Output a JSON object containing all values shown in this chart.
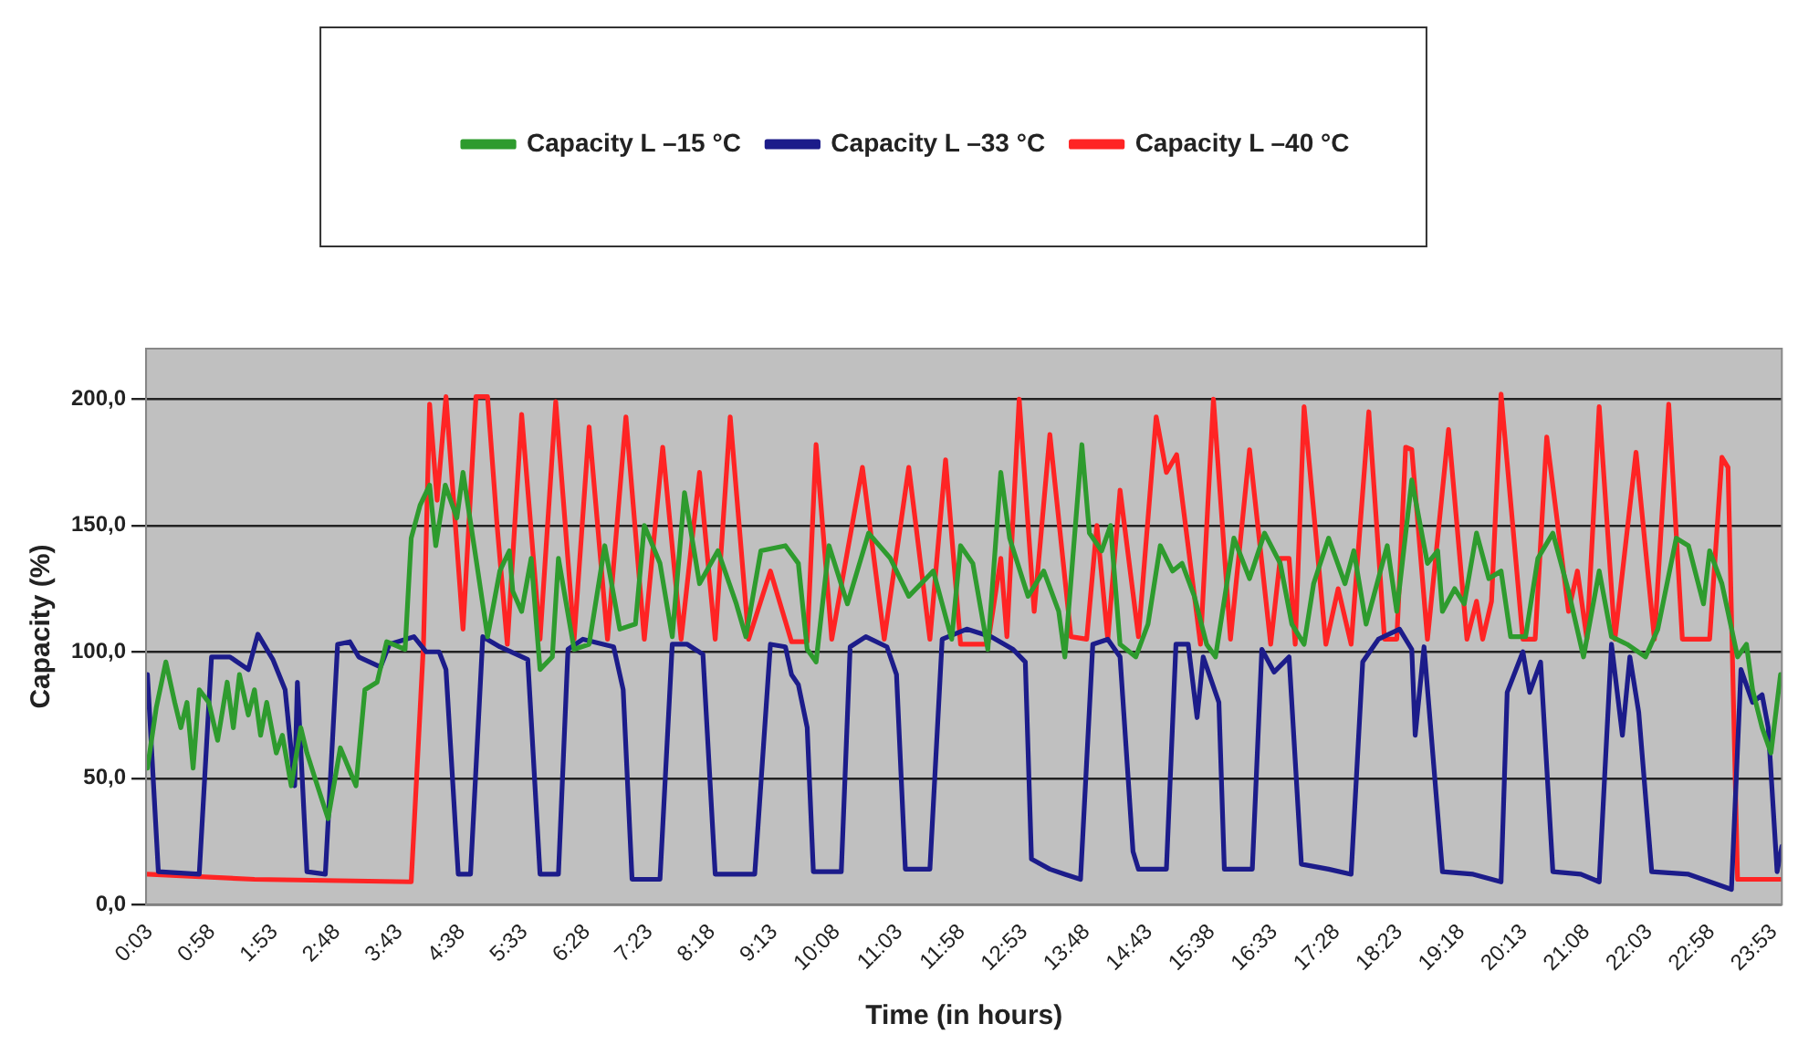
{
  "chart_data": {
    "type": "line",
    "xlabel": "Time (in hours)",
    "ylabel": "Capacity (%)",
    "legend": "top",
    "grid": "y",
    "xlim": [
      0,
      24
    ],
    "xticks": [
      {
        "value": 0.05,
        "label": "0:03"
      },
      {
        "value": 0.9667,
        "label": "0:58"
      },
      {
        "value": 1.8833,
        "label": "1:53"
      },
      {
        "value": 2.8,
        "label": "2:48"
      },
      {
        "value": 3.7167,
        "label": "3:43"
      },
      {
        "value": 4.6333,
        "label": "4:38"
      },
      {
        "value": 5.55,
        "label": "5:33"
      },
      {
        "value": 6.4667,
        "label": "6:28"
      },
      {
        "value": 7.3833,
        "label": "7:23"
      },
      {
        "value": 8.3,
        "label": "8:18"
      },
      {
        "value": 9.2167,
        "label": "9:13"
      },
      {
        "value": 10.1333,
        "label": "10:08"
      },
      {
        "value": 11.05,
        "label": "11:03"
      },
      {
        "value": 11.9667,
        "label": "11:58"
      },
      {
        "value": 12.8833,
        "label": "12:53"
      },
      {
        "value": 13.8,
        "label": "13:48"
      },
      {
        "value": 14.7167,
        "label": "14:43"
      },
      {
        "value": 15.6333,
        "label": "15:38"
      },
      {
        "value": 16.55,
        "label": "16:33"
      },
      {
        "value": 17.4667,
        "label": "17:28"
      },
      {
        "value": 18.3833,
        "label": "18:23"
      },
      {
        "value": 19.3,
        "label": "19:18"
      },
      {
        "value": 20.2167,
        "label": "20:13"
      },
      {
        "value": 21.1333,
        "label": "21:08"
      },
      {
        "value": 22.05,
        "label": "22:03"
      },
      {
        "value": 22.9667,
        "label": "22:58"
      },
      {
        "value": 23.8833,
        "label": "23:53"
      }
    ],
    "ylim": [
      0,
      220
    ],
    "yticks": [
      {
        "value": 0,
        "label": "0,0"
      },
      {
        "value": 50,
        "label": "50,0"
      },
      {
        "value": 100,
        "label": "100,0"
      },
      {
        "value": 150,
        "label": "150,0"
      },
      {
        "value": 200,
        "label": "200,0"
      }
    ],
    "series": [
      {
        "name": "Capacity L –15 °C",
        "color": "#2e9b2e",
        "x": [
          0.02,
          0.15,
          0.29,
          0.42,
          0.51,
          0.6,
          0.69,
          0.78,
          0.92,
          1.05,
          1.19,
          1.28,
          1.37,
          1.5,
          1.59,
          1.68,
          1.77,
          1.91,
          2.0,
          2.13,
          2.27,
          2.36,
          2.49,
          2.67,
          2.85,
          3.08,
          3.21,
          3.39,
          3.53,
          3.8,
          3.89,
          4.02,
          4.16,
          4.25,
          4.39,
          4.56,
          4.65,
          4.84,
          5.01,
          5.19,
          5.33,
          5.38,
          5.51,
          5.65,
          5.78,
          5.96,
          6.05,
          6.28,
          6.5,
          6.73,
          6.95,
          7.18,
          7.31,
          7.54,
          7.72,
          7.9,
          8.12,
          8.39,
          8.66,
          8.8,
          9.02,
          9.38,
          9.57,
          9.7,
          9.83,
          10.02,
          10.29,
          10.6,
          10.92,
          11.19,
          11.55,
          11.82,
          11.95,
          12.13,
          12.35,
          12.54,
          12.67,
          12.94,
          13.17,
          13.39,
          13.48,
          13.73,
          13.84,
          14.02,
          14.15,
          14.29,
          14.52,
          14.7,
          14.88,
          15.06,
          15.2,
          15.38,
          15.56,
          15.69,
          15.96,
          16.19,
          16.41,
          16.64,
          16.81,
          16.99,
          17.13,
          17.35,
          17.59,
          17.72,
          17.9,
          18.21,
          18.35,
          18.57,
          18.8,
          18.95,
          19.02,
          19.2,
          19.34,
          19.52,
          19.7,
          19.88,
          20.02,
          20.24,
          20.42,
          20.64,
          20.87,
          21.09,
          21.32,
          21.5,
          21.73,
          22.0,
          22.18,
          22.45,
          22.63,
          22.85,
          22.94,
          23.12,
          23.35,
          23.48,
          23.57,
          23.71,
          23.84,
          23.98
        ],
        "values": [
          54,
          78,
          96,
          80,
          70,
          80,
          54,
          85,
          80,
          65,
          88,
          70,
          91,
          75,
          85,
          67,
          80,
          60,
          67,
          47,
          70,
          60,
          49,
          34,
          62,
          47,
          85,
          88,
          104,
          101,
          145,
          158,
          166,
          142,
          166,
          153,
          171,
          137,
          106,
          132,
          140,
          124,
          116,
          137,
          93,
          98,
          137,
          101,
          103,
          142,
          109,
          111,
          150,
          135,
          106,
          163,
          127,
          140,
          119,
          106,
          140,
          142,
          135,
          101,
          96,
          142,
          119,
          147,
          137,
          122,
          132,
          105,
          142,
          135,
          101,
          171,
          145,
          122,
          132,
          116,
          98,
          182,
          147,
          140,
          150,
          103,
          98,
          111,
          142,
          132,
          135,
          122,
          103,
          98,
          145,
          129,
          147,
          135,
          111,
          103,
          127,
          145,
          127,
          140,
          111,
          142,
          116,
          168,
          135,
          140,
          116,
          125,
          119,
          147,
          129,
          132,
          106,
          106,
          137,
          147,
          124,
          98,
          132,
          106,
          103,
          98,
          109,
          145,
          142,
          119,
          140,
          127,
          98,
          103,
          85,
          70,
          60,
          91
        ]
      },
      {
        "name": "Capacity L –33 °C",
        "color": "#1c1c8a",
        "x": [
          0.02,
          0.18,
          0.78,
          0.96,
          1.23,
          1.5,
          1.64,
          1.86,
          2.04,
          2.18,
          2.22,
          2.36,
          2.63,
          2.81,
          2.99,
          3.12,
          3.44,
          3.57,
          3.93,
          4.11,
          4.3,
          4.4,
          4.58,
          4.76,
          4.94,
          5.19,
          5.6,
          5.78,
          6.05,
          6.19,
          6.41,
          6.86,
          7.0,
          7.13,
          7.54,
          7.72,
          7.94,
          8.17,
          8.35,
          8.93,
          9.16,
          9.38,
          9.47,
          9.57,
          9.7,
          9.79,
          10.2,
          10.33,
          10.56,
          10.87,
          11.01,
          11.14,
          11.5,
          11.68,
          12.04,
          12.4,
          12.72,
          12.9,
          12.99,
          13.26,
          13.48,
          13.71,
          13.89,
          14.11,
          14.29,
          14.48,
          14.56,
          14.97,
          15.11,
          15.29,
          15.42,
          15.51,
          15.74,
          15.82,
          16.23,
          16.37,
          16.55,
          16.77,
          16.95,
          17.35,
          17.68,
          17.85,
          18.08,
          18.39,
          18.57,
          18.62,
          18.75,
          19.02,
          19.47,
          19.88,
          19.97,
          20.2,
          20.3,
          20.46,
          20.64,
          21.05,
          21.32,
          21.5,
          21.66,
          21.77,
          21.9,
          22.09,
          22.63,
          23.26,
          23.4,
          23.57,
          23.71,
          23.8,
          23.93,
          24.0
        ],
        "values": [
          91,
          13,
          12,
          98,
          98,
          93,
          107,
          97,
          85,
          47,
          88,
          13,
          12,
          103,
          104,
          98,
          94,
          103,
          106,
          100,
          100,
          93,
          12,
          12,
          106,
          102,
          97,
          12,
          12,
          101,
          105,
          102,
          85,
          10,
          10,
          103,
          103,
          99,
          12,
          12,
          103,
          102,
          91,
          87,
          70,
          13,
          13,
          102,
          106,
          102,
          91,
          14,
          14,
          105,
          109,
          106,
          101,
          96,
          18,
          14,
          12,
          10,
          103,
          105,
          98,
          21,
          14,
          14,
          103,
          103,
          74,
          98,
          80,
          14,
          14,
          101,
          92,
          98,
          16,
          14,
          12,
          96,
          105,
          109,
          101,
          67,
          102,
          13,
          12,
          9,
          84,
          100,
          84,
          96,
          13,
          12,
          9,
          103,
          67,
          98,
          76,
          13,
          12,
          6,
          93,
          80,
          83,
          70,
          13,
          23
        ]
      },
      {
        "name": "Capacity L –40 °C",
        "color": "#ff2424",
        "x": [
          0.02,
          1.59,
          3.89,
          4.07,
          4.16,
          4.27,
          4.4,
          4.65,
          4.84,
          5.01,
          5.15,
          5.3,
          5.51,
          5.78,
          6.01,
          6.28,
          6.5,
          6.77,
          7.04,
          7.31,
          7.58,
          7.85,
          8.12,
          8.35,
          8.57,
          8.84,
          9.16,
          9.47,
          9.7,
          9.83,
          10.06,
          10.51,
          10.83,
          11.19,
          11.5,
          11.73,
          11.95,
          12.35,
          12.54,
          12.63,
          12.81,
          13.03,
          13.26,
          13.57,
          13.8,
          13.95,
          14.11,
          14.29,
          14.56,
          14.82,
          14.97,
          15.12,
          15.47,
          15.66,
          15.91,
          16.19,
          16.5,
          16.64,
          16.77,
          16.86,
          16.99,
          17.31,
          17.49,
          17.68,
          17.94,
          18.17,
          18.35,
          18.48,
          18.57,
          18.8,
          19.11,
          19.38,
          19.52,
          19.61,
          19.74,
          19.88,
          20.2,
          20.38,
          20.55,
          20.87,
          21.0,
          21.14,
          21.32,
          21.55,
          21.86,
          22.13,
          22.34,
          22.54,
          22.94,
          23.12,
          23.21,
          23.35,
          23.98
        ],
        "values": [
          12,
          10,
          9,
          103,
          198,
          160,
          201,
          109,
          201,
          201,
          150,
          103,
          194,
          105,
          199,
          105,
          189,
          105,
          193,
          105,
          181,
          105,
          171,
          105,
          193,
          105,
          132,
          104,
          104,
          182,
          105,
          173,
          105,
          173,
          105,
          176,
          103,
          103,
          137,
          106,
          200,
          116,
          186,
          106,
          105,
          150,
          105,
          164,
          106,
          193,
          171,
          178,
          103,
          200,
          105,
          180,
          103,
          137,
          137,
          103,
          197,
          103,
          125,
          103,
          195,
          105,
          105,
          181,
          180,
          105,
          188,
          105,
          120,
          105,
          120,
          202,
          105,
          105,
          185,
          116,
          132,
          105,
          197,
          105,
          179,
          105,
          198,
          105,
          105,
          177,
          173,
          10,
          10
        ]
      }
    ]
  }
}
